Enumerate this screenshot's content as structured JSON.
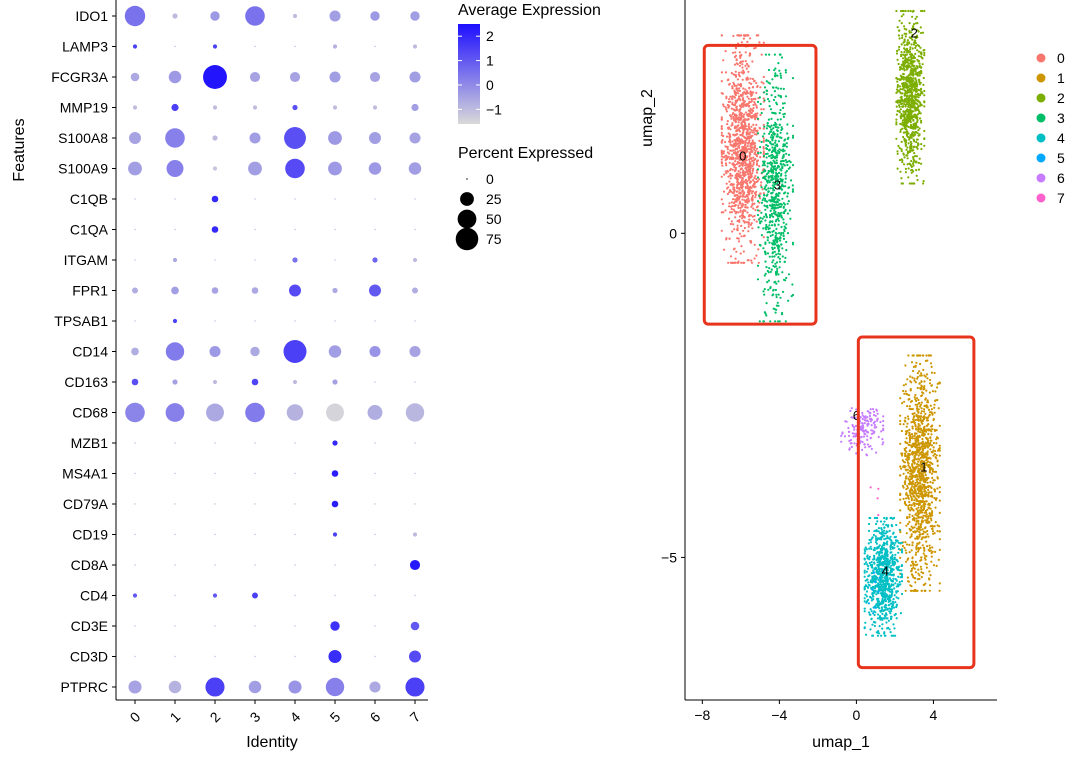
{
  "chart_data": [
    {
      "type": "dotplot",
      "title": "",
      "xlabel": "Identity",
      "ylabel": "Features",
      "categories": [
        "0",
        "1",
        "2",
        "3",
        "4",
        "5",
        "6",
        "7"
      ],
      "features": [
        "IDO1",
        "LAMP3",
        "FCGR3A",
        "MMP19",
        "S100A8",
        "S100A9",
        "C1QB",
        "C1QA",
        "ITGAM",
        "FPR1",
        "TPSAB1",
        "CD14",
        "CD163",
        "CD68",
        "MZB1",
        "MS4A1",
        "CD79A",
        "CD19",
        "CD8A",
        "CD4",
        "CD3E",
        "CD3D",
        "PTPRC"
      ],
      "avg_expression": [
        [
          0.5,
          -1.0,
          -0.3,
          0.5,
          -1.0,
          -0.4,
          -0.3,
          -0.4
        ],
        [
          1.5,
          -1.0,
          1.5,
          -1.0,
          -1.0,
          -0.8,
          -1.0,
          -1.0
        ],
        [
          -0.6,
          -0.3,
          2.4,
          -0.5,
          -0.5,
          -0.4,
          -0.5,
          -0.4
        ],
        [
          -1.0,
          1.5,
          -1.0,
          -1.0,
          1.2,
          -1.0,
          -1.0,
          -0.4
        ],
        [
          -0.5,
          0.2,
          -1.0,
          -0.4,
          1.2,
          -0.3,
          -0.4,
          -0.5
        ],
        [
          -0.4,
          0.2,
          -1.2,
          -0.4,
          1.3,
          -0.3,
          -0.3,
          -0.4
        ],
        [
          -1.0,
          -1.0,
          2.0,
          -1.0,
          -1.0,
          -1.0,
          -1.0,
          -1.0
        ],
        [
          -1.0,
          -1.0,
          2.0,
          -1.0,
          -1.0,
          -1.0,
          -1.0,
          -1.0
        ],
        [
          -1.0,
          -0.6,
          -1.0,
          -1.0,
          0.5,
          -1.0,
          0.8,
          -1.0
        ],
        [
          -0.7,
          -0.4,
          -0.5,
          -0.6,
          1.3,
          -0.6,
          1.0,
          -0.7
        ],
        [
          -1.0,
          1.5,
          -1.0,
          -1.0,
          -1.0,
          -1.0,
          -1.0,
          -1.0
        ],
        [
          -0.7,
          0.3,
          -0.3,
          -0.6,
          1.5,
          -0.4,
          -0.2,
          -0.5
        ],
        [
          1.2,
          -0.5,
          -1.0,
          1.4,
          -1.0,
          -0.5,
          -1.0,
          -1.0
        ],
        [
          0.1,
          0.2,
          -0.6,
          0.3,
          -0.8,
          -1.5,
          -0.7,
          -0.9
        ],
        [
          -1.0,
          -1.0,
          -1.0,
          -1.0,
          -1.0,
          2.0,
          -1.0,
          -1.0
        ],
        [
          -1.0,
          -1.0,
          -1.0,
          -1.0,
          -1.0,
          2.2,
          -1.0,
          -1.0
        ],
        [
          -1.0,
          -1.0,
          -1.0,
          -1.0,
          -1.0,
          2.2,
          -1.0,
          -1.0
        ],
        [
          -1.0,
          -1.0,
          -1.0,
          -1.0,
          -1.0,
          1.5,
          -1.0,
          -1.0
        ],
        [
          -1.0,
          -1.0,
          -1.0,
          -1.0,
          -1.0,
          -1.0,
          -1.0,
          2.3
        ],
        [
          1.0,
          -1.0,
          1.0,
          1.5,
          -1.0,
          -1.0,
          -1.0,
          -1.0
        ],
        [
          -1.0,
          -1.0,
          -1.0,
          -1.0,
          -1.0,
          1.8,
          -1.0,
          1.0
        ],
        [
          -1.0,
          -1.0,
          -1.0,
          -1.0,
          -1.0,
          1.9,
          -1.0,
          1.3
        ],
        [
          -0.5,
          -0.8,
          1.5,
          -0.4,
          -0.2,
          0.2,
          -0.6,
          1.5
        ]
      ],
      "pct_expressed": [
        [
          60,
          2,
          10,
          55,
          1,
          15,
          10,
          10
        ],
        [
          1,
          0,
          1,
          0,
          0,
          1,
          0,
          1
        ],
        [
          8,
          20,
          85,
          12,
          12,
          15,
          12,
          15
        ],
        [
          1,
          5,
          1,
          1,
          2,
          1,
          1,
          5
        ],
        [
          18,
          55,
          2,
          15,
          70,
          25,
          18,
          15
        ],
        [
          25,
          40,
          1,
          25,
          55,
          25,
          20,
          20
        ],
        [
          0,
          0,
          4,
          0,
          0,
          0,
          0,
          0
        ],
        [
          0,
          0,
          4,
          0,
          0,
          0,
          0,
          0
        ],
        [
          0,
          1,
          0,
          0,
          2,
          0,
          2,
          1
        ],
        [
          3,
          6,
          4,
          4,
          18,
          2,
          18,
          3
        ],
        [
          0,
          1,
          0,
          0,
          0,
          0,
          0,
          0
        ],
        [
          6,
          48,
          15,
          10,
          78,
          20,
          15,
          15
        ],
        [
          4,
          2,
          1,
          4,
          1,
          2,
          0,
          0
        ],
        [
          55,
          50,
          45,
          55,
          38,
          45,
          30,
          48
        ],
        [
          0,
          0,
          0,
          0,
          0,
          2,
          0,
          0
        ],
        [
          0,
          0,
          0,
          0,
          0,
          4,
          0,
          0
        ],
        [
          0,
          0,
          0,
          0,
          0,
          4,
          0,
          0
        ],
        [
          0,
          0,
          0,
          0,
          0,
          1,
          0,
          1
        ],
        [
          0,
          0,
          0,
          0,
          0,
          0,
          0,
          12
        ],
        [
          1,
          0,
          1,
          3,
          0,
          0,
          0,
          0
        ],
        [
          0,
          0,
          0,
          0,
          0,
          10,
          0,
          8
        ],
        [
          0,
          0,
          0,
          0,
          0,
          22,
          0,
          18
        ],
        [
          22,
          20,
          52,
          20,
          22,
          48,
          15,
          52
        ]
      ],
      "legend_avg": {
        "title": "Average Expression",
        "ticks": [
          "2",
          "1",
          "0",
          "−1"
        ],
        "values": [
          2,
          1,
          0,
          -1
        ],
        "range": [
          -1.6,
          2.5
        ],
        "low_color": "#d9d9d9",
        "high_color": "#1e0fff"
      },
      "legend_pct": {
        "title": "Percent Expressed",
        "ticks": [
          "0",
          "25",
          "50",
          "75"
        ],
        "values": [
          0,
          25,
          50,
          75
        ]
      }
    },
    {
      "type": "scatter",
      "title": "",
      "xlabel": "umap_1",
      "ylabel": "umap_2",
      "x_ticks": [
        "−8",
        "−4",
        "0",
        "4"
      ],
      "x_tick_values": [
        -8,
        -4,
        0,
        4
      ],
      "y_ticks": [
        "−5",
        "0"
      ],
      "y_tick_values": [
        -5,
        0
      ],
      "xlim": [
        -8.9,
        7.3
      ],
      "ylim": [
        -7.2,
        3.6
      ],
      "clusters": [
        {
          "label": "0",
          "color": "#F8766D",
          "center": [
            -5.9,
            1.3
          ],
          "spread": [
            0.9,
            1.45
          ],
          "n": 1200,
          "seed": 11
        },
        {
          "label": "1",
          "color": "#CD9600",
          "center": [
            3.3,
            -3.7
          ],
          "spread": [
            0.85,
            1.5
          ],
          "n": 1200,
          "seed": 12
        },
        {
          "label": "2",
          "color": "#7CAE00",
          "center": [
            2.8,
            2.1
          ],
          "spread": [
            0.6,
            1.1
          ],
          "n": 900,
          "seed": 13
        },
        {
          "label": "3",
          "color": "#00BE67",
          "center": [
            -4.2,
            0.7
          ],
          "spread": [
            0.75,
            1.7
          ],
          "n": 700,
          "seed": 14
        },
        {
          "label": "4",
          "color": "#00BFC4",
          "center": [
            1.4,
            -5.3
          ],
          "spread": [
            0.8,
            0.75
          ],
          "n": 800,
          "seed": 15
        },
        {
          "label": "5",
          "color": "#00A9FF",
          "center": [
            1.0,
            -5.5
          ],
          "spread": [
            0.3,
            0.3
          ],
          "n": 8,
          "seed": 16
        },
        {
          "label": "6",
          "color": "#C77CFF",
          "center": [
            0.3,
            -3.0
          ],
          "spread": [
            0.9,
            0.35
          ],
          "n": 170,
          "seed": 17
        },
        {
          "label": "7",
          "color": "#FF61CC",
          "center": [
            0.9,
            -4.2
          ],
          "spread": [
            0.3,
            0.3
          ],
          "n": 4,
          "seed": 18
        }
      ],
      "cluster_labels": [
        {
          "text": "0",
          "x": -5.9,
          "y": 1.2
        },
        {
          "text": "3",
          "x": -4.1,
          "y": 0.75
        },
        {
          "text": "2",
          "x": 3.0,
          "y": 3.1
        },
        {
          "text": "6",
          "x": 0.0,
          "y": -2.8
        },
        {
          "text": "1",
          "x": 3.5,
          "y": -3.6
        },
        {
          "text": "4",
          "x": 1.5,
          "y": -5.2
        }
      ],
      "highlight_boxes": [
        {
          "x": [
            -7.9,
            -2.1
          ],
          "y": [
            -1.4,
            2.9
          ],
          "color": "#E8341C"
        },
        {
          "x": [
            0.1,
            6.1
          ],
          "y": [
            -6.7,
            -1.6
          ],
          "color": "#E8341C"
        }
      ]
    }
  ]
}
